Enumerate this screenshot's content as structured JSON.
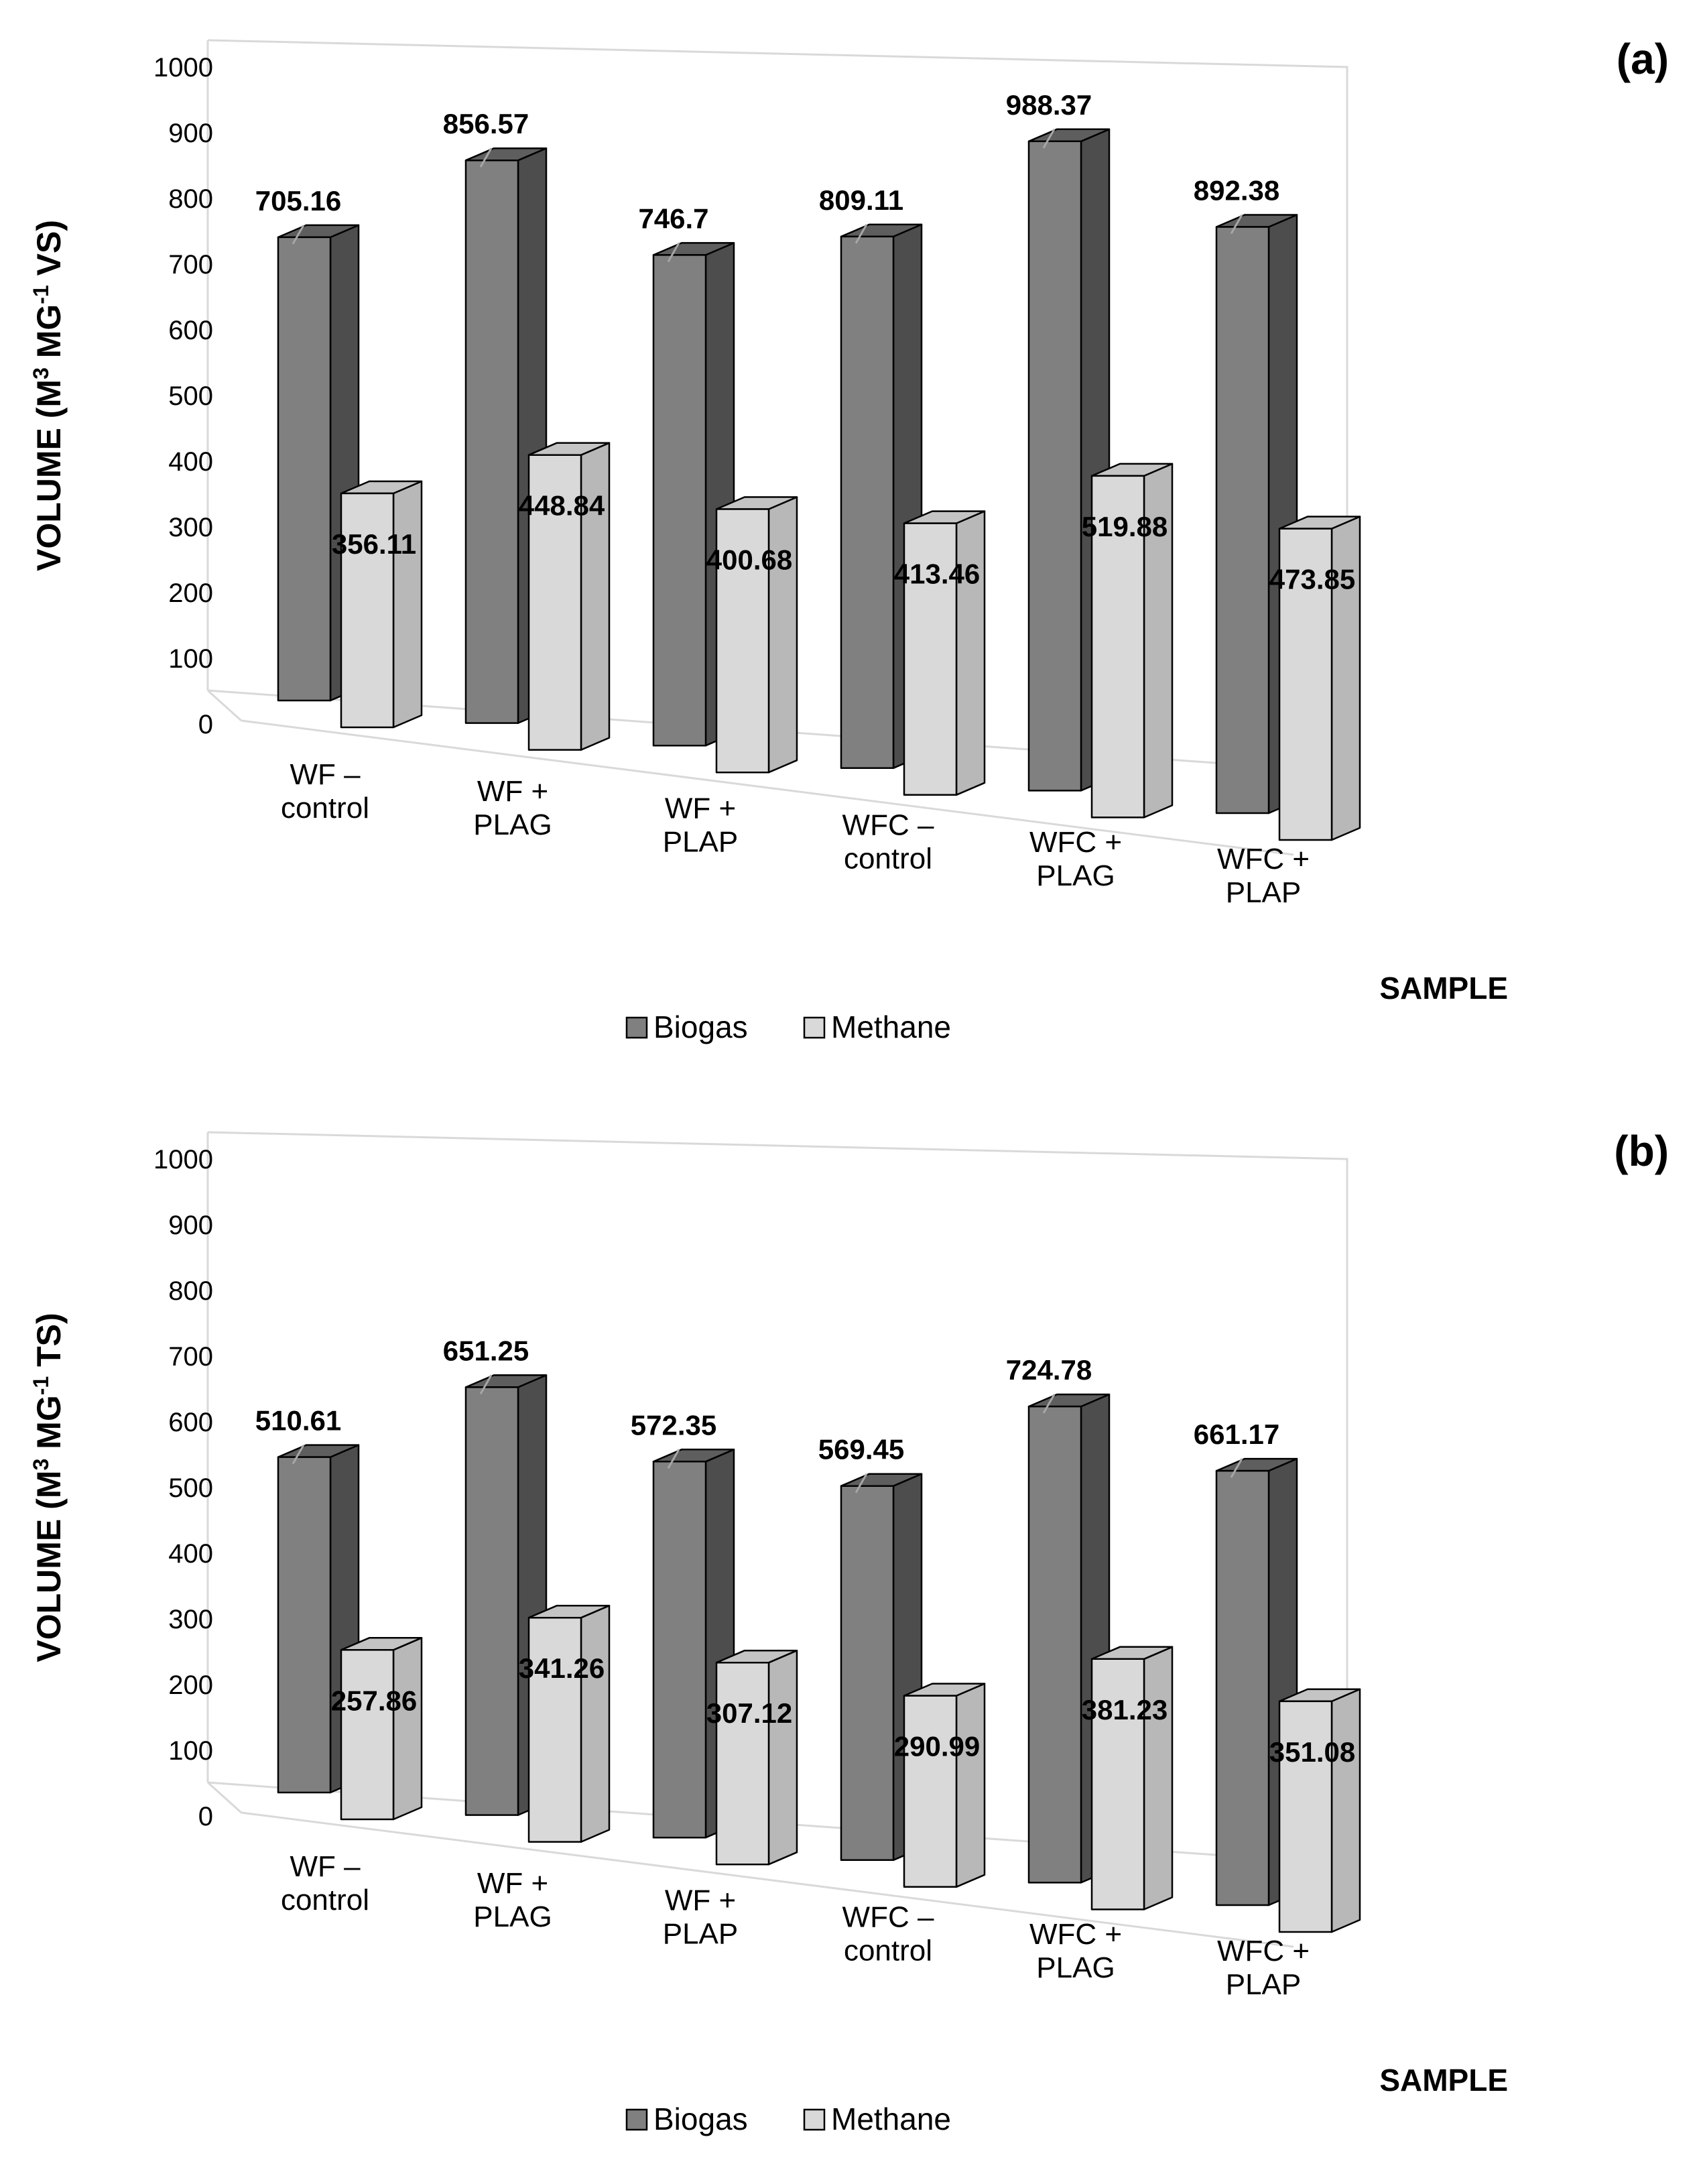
{
  "chart_data": [
    {
      "type": "bar",
      "panel_label": "(a)",
      "categories": [
        [
          "WF –",
          "control"
        ],
        [
          "WF +",
          "PLAG"
        ],
        [
          "WF +",
          "PLAP"
        ],
        [
          "WFC –",
          "control"
        ],
        [
          "WFC +",
          "PLAG"
        ],
        [
          "WFC +",
          "PLAP"
        ]
      ],
      "series": [
        {
          "name": "Biogas",
          "values": [
            705.16,
            856.57,
            746.7,
            809.11,
            988.37,
            892.38
          ],
          "labels": [
            "705.16",
            "856.57",
            "746.7",
            "809.11",
            "988.37",
            "892.38"
          ]
        },
        {
          "name": "Methane",
          "values": [
            356.11,
            448.84,
            400.68,
            413.46,
            519.88,
            473.85
          ],
          "labels": [
            "356.11",
            "448.84",
            "400.68",
            "413.46",
            "519.88",
            "473.85"
          ]
        }
      ],
      "ylabel_parts": {
        "pre": "VOLUME (M",
        "sup1": "3",
        "mid": " MG",
        "sup2": "-1",
        "post": " VS)"
      },
      "xlabel": "SAMPLE",
      "ylim": [
        0,
        1000
      ],
      "yticks": [
        "0",
        "100",
        "200",
        "300",
        "400",
        "500",
        "600",
        "700",
        "800",
        "900",
        "1000"
      ],
      "legend": [
        {
          "name": "Biogas",
          "color": "#808080"
        },
        {
          "name": "Methane",
          "color": "#d9d9d9"
        }
      ]
    },
    {
      "type": "bar",
      "panel_label": "(b)",
      "categories": [
        [
          "WF –",
          "control"
        ],
        [
          "WF +",
          "PLAG"
        ],
        [
          "WF +",
          "PLAP"
        ],
        [
          "WFC –",
          "control"
        ],
        [
          "WFC +",
          "PLAG"
        ],
        [
          "WFC +",
          "PLAP"
        ]
      ],
      "series": [
        {
          "name": "Biogas",
          "values": [
            510.61,
            651.25,
            572.35,
            569.45,
            724.78,
            661.17
          ],
          "labels": [
            "510.61",
            "651.25",
            "572.35",
            "569.45",
            "724.78",
            "661.17"
          ]
        },
        {
          "name": "Methane",
          "values": [
            257.86,
            341.26,
            307.12,
            290.99,
            381.23,
            351.08
          ],
          "labels": [
            "257.86",
            "341.26",
            "307.12",
            "290.99",
            "381.23",
            "351.08"
          ]
        }
      ],
      "ylabel_parts": {
        "pre": "VOLUME (M",
        "sup1": "3",
        "mid": " MG",
        "sup2": "-1",
        "post": " TS)"
      },
      "xlabel": "SAMPLE",
      "ylim": [
        0,
        1000
      ],
      "yticks": [
        "0",
        "100",
        "200",
        "300",
        "400",
        "500",
        "600",
        "700",
        "800",
        "900",
        "1000"
      ],
      "legend": [
        {
          "name": "Biogas",
          "color": "#808080"
        },
        {
          "name": "Methane",
          "color": "#d9d9d9"
        }
      ]
    }
  ],
  "colors": {
    "biogas_front": "#808080",
    "biogas_side": "#4d4d4d",
    "biogas_top": "#5e5e5e",
    "methane_front": "#d9d9d9",
    "methane_side": "#b8b8b8",
    "methane_top": "#c4c4c4",
    "gridline": "#d9d9d9",
    "outline": "#000000",
    "text": "#000000"
  }
}
